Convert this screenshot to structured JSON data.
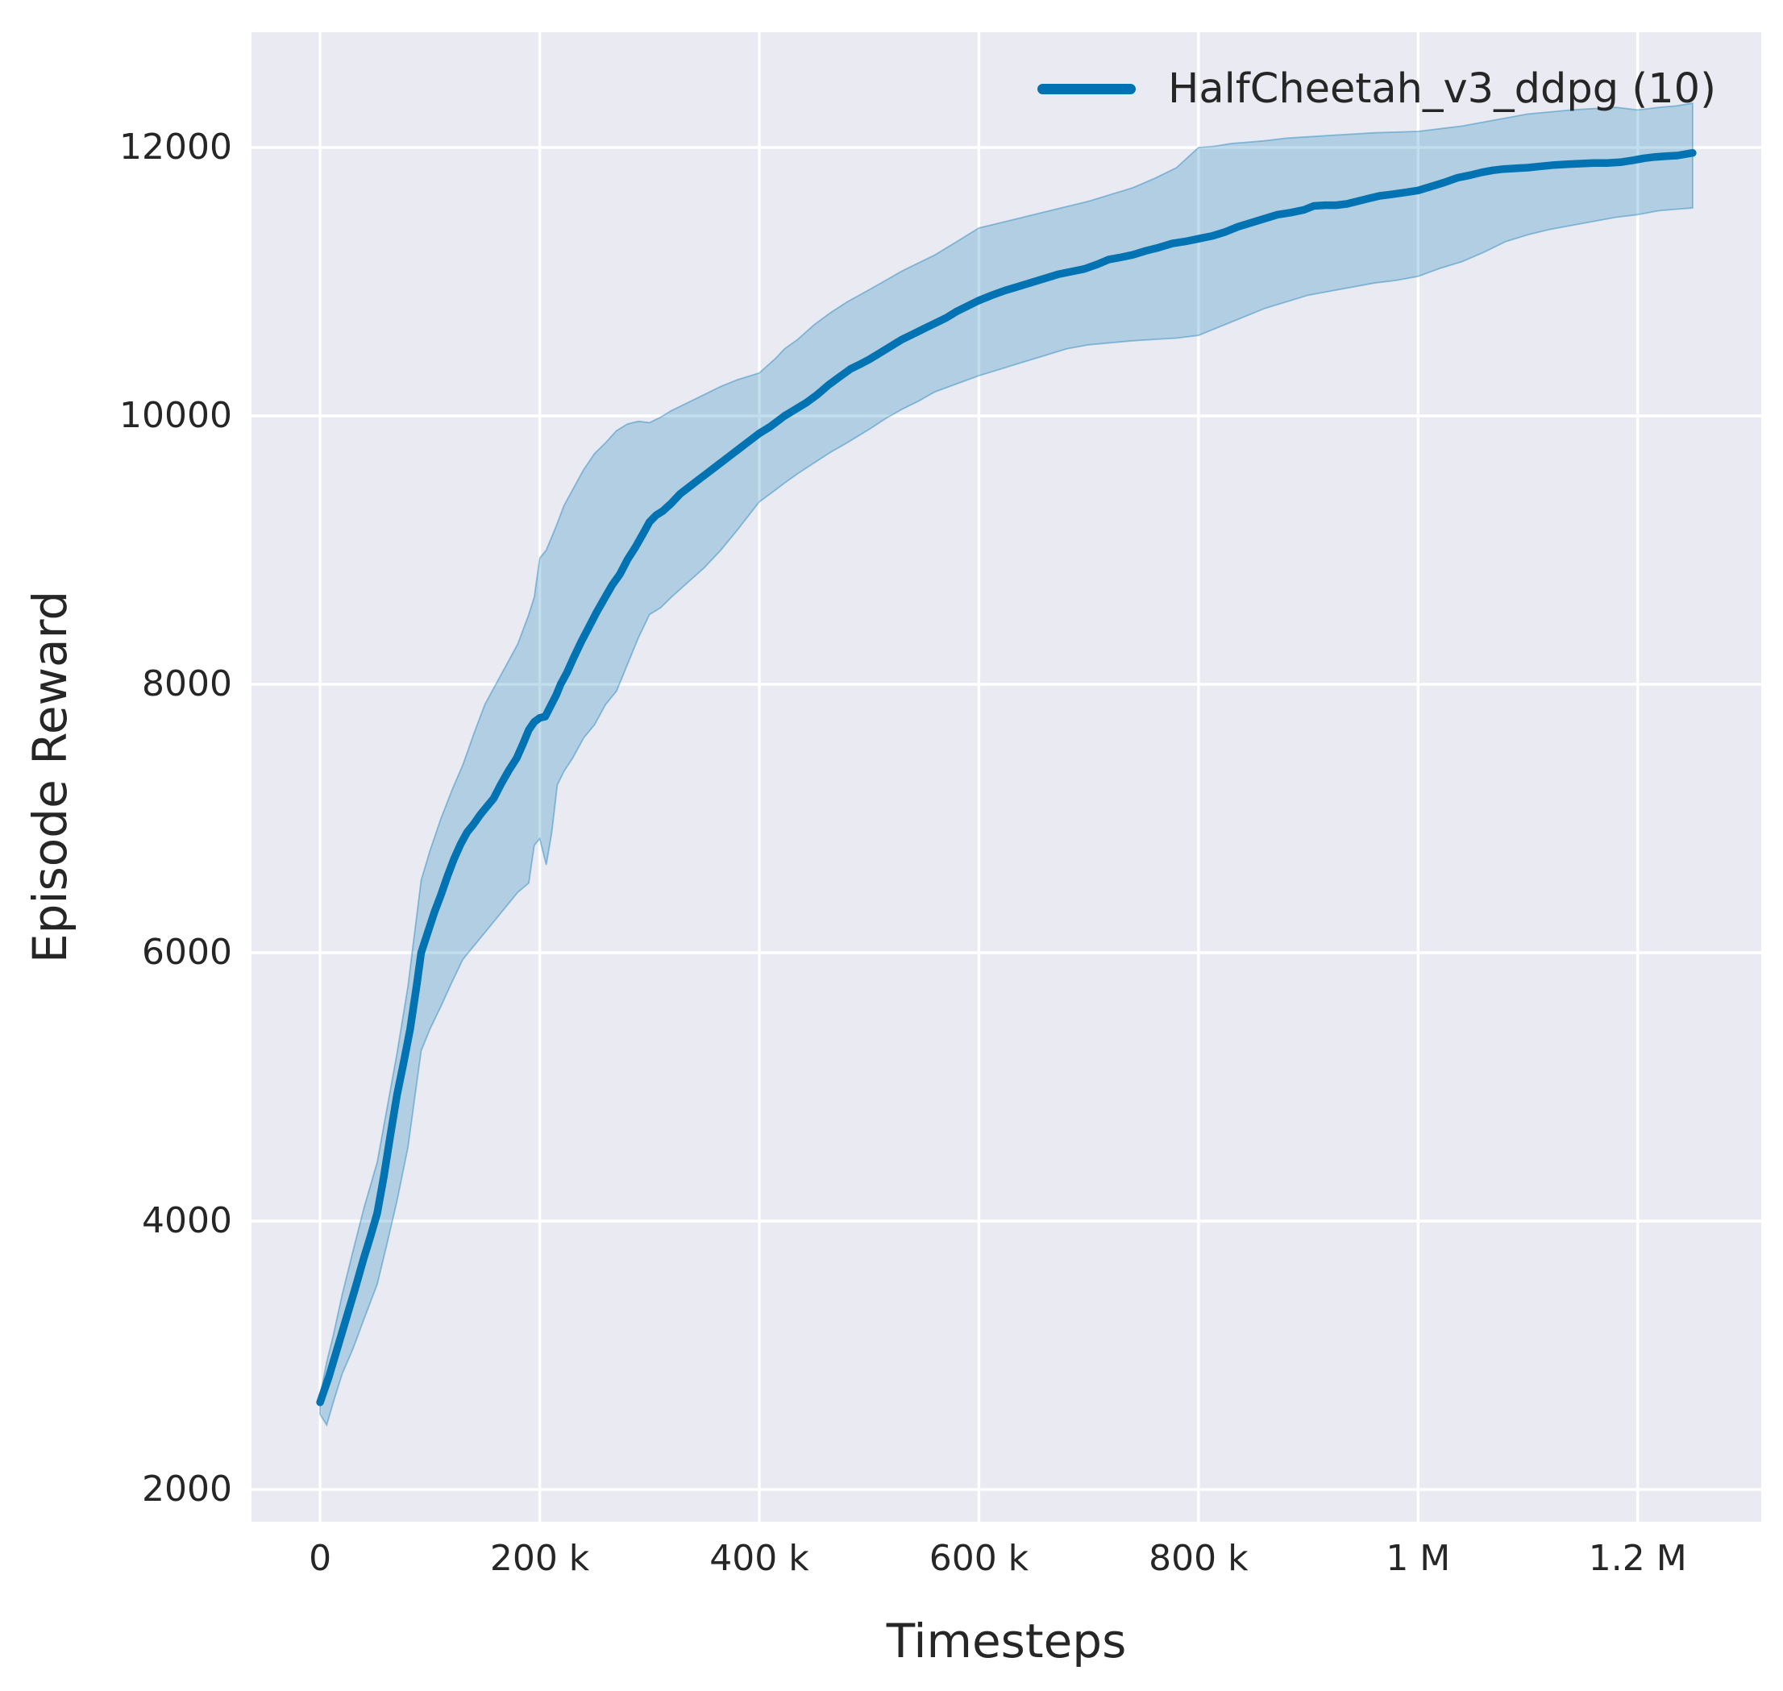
{
  "colors": {
    "figure_bg": "#ffffff",
    "plot_bg": "#eaeaf2",
    "grid": "#ffffff",
    "text": "#262626",
    "line": "#0173b2",
    "band": "rgba(1,115,178,0.24)",
    "band_edge": "rgba(1,115,178,0.38)"
  },
  "legend": {
    "label": "HalfCheetah_v3_ddpg (10)"
  },
  "axes": {
    "xlabel": "Timesteps",
    "ylabel": "Episode Reward",
    "x_ticks": [
      {
        "k": 0,
        "label": "0"
      },
      {
        "k": 200,
        "label": "200 k"
      },
      {
        "k": 400,
        "label": "400 k"
      },
      {
        "k": 600,
        "label": "600 k"
      },
      {
        "k": 800,
        "label": "800 k"
      },
      {
        "k": 1000,
        "label": "1 M"
      },
      {
        "k": 1200,
        "label": "1.2 M"
      }
    ],
    "y_ticks": [
      {
        "v": 2000,
        "label": "2000"
      },
      {
        "v": 4000,
        "label": "4000"
      },
      {
        "v": 6000,
        "label": "6000"
      },
      {
        "v": 8000,
        "label": "8000"
      },
      {
        "v": 10000,
        "label": "10000"
      },
      {
        "v": 12000,
        "label": "12000"
      }
    ]
  },
  "chart_data": {
    "type": "line",
    "title": "",
    "xlabel": "Timesteps",
    "ylabel": "Episode Reward",
    "x_unit_note": "x values in thousands of timesteps",
    "xlim_k": [
      -62.5,
      1312.5
    ],
    "ylim": [
      1760,
      12859
    ],
    "grid": true,
    "legend_position": "upper right",
    "legend": [
      {
        "name": "HalfCheetah_v3_ddpg (10)",
        "color": "#0173b2"
      }
    ],
    "series": [
      {
        "name": "HalfCheetah_v3_ddpg (10)",
        "mean": [
          [
            0,
            2650
          ],
          [
            8,
            2840
          ],
          [
            16,
            3060
          ],
          [
            24,
            3280
          ],
          [
            32,
            3500
          ],
          [
            40,
            3730
          ],
          [
            46,
            3890
          ],
          [
            52,
            4060
          ],
          [
            58,
            4330
          ],
          [
            64,
            4640
          ],
          [
            70,
            4940
          ],
          [
            76,
            5180
          ],
          [
            82,
            5430
          ],
          [
            88,
            5760
          ],
          [
            92,
            6000
          ],
          [
            98,
            6150
          ],
          [
            104,
            6300
          ],
          [
            110,
            6430
          ],
          [
            116,
            6570
          ],
          [
            122,
            6700
          ],
          [
            128,
            6810
          ],
          [
            134,
            6900
          ],
          [
            140,
            6960
          ],
          [
            146,
            7030
          ],
          [
            152,
            7090
          ],
          [
            158,
            7150
          ],
          [
            165,
            7260
          ],
          [
            172,
            7360
          ],
          [
            179,
            7450
          ],
          [
            185,
            7560
          ],
          [
            190,
            7660
          ],
          [
            195,
            7720
          ],
          [
            200,
            7750
          ],
          [
            205,
            7760
          ],
          [
            210,
            7840
          ],
          [
            215,
            7920
          ],
          [
            219,
            8000
          ],
          [
            225,
            8090
          ],
          [
            231,
            8200
          ],
          [
            238,
            8320
          ],
          [
            245,
            8430
          ],
          [
            252,
            8540
          ],
          [
            259,
            8640
          ],
          [
            266,
            8740
          ],
          [
            273,
            8820
          ],
          [
            280,
            8930
          ],
          [
            287,
            9020
          ],
          [
            294,
            9120
          ],
          [
            300,
            9210
          ],
          [
            306,
            9260
          ],
          [
            312,
            9290
          ],
          [
            320,
            9350
          ],
          [
            328,
            9420
          ],
          [
            336,
            9470
          ],
          [
            344,
            9520
          ],
          [
            352,
            9570
          ],
          [
            360,
            9620
          ],
          [
            368,
            9670
          ],
          [
            376,
            9720
          ],
          [
            384,
            9770
          ],
          [
            392,
            9820
          ],
          [
            400,
            9870
          ],
          [
            410,
            9920
          ],
          [
            423,
            10000
          ],
          [
            433,
            10050
          ],
          [
            443,
            10100
          ],
          [
            453,
            10160
          ],
          [
            463,
            10230
          ],
          [
            473,
            10290
          ],
          [
            483,
            10350
          ],
          [
            493,
            10390
          ],
          [
            500,
            10420
          ],
          [
            510,
            10470
          ],
          [
            520,
            10520
          ],
          [
            530,
            10570
          ],
          [
            540,
            10610
          ],
          [
            550,
            10650
          ],
          [
            560,
            10690
          ],
          [
            570,
            10730
          ],
          [
            580,
            10780
          ],
          [
            590,
            10820
          ],
          [
            600,
            10860
          ],
          [
            612,
            10900
          ],
          [
            624,
            10935
          ],
          [
            636,
            10965
          ],
          [
            648,
            10995
          ],
          [
            660,
            11025
          ],
          [
            672,
            11055
          ],
          [
            684,
            11075
          ],
          [
            696,
            11095
          ],
          [
            708,
            11130
          ],
          [
            718,
            11165
          ],
          [
            728,
            11180
          ],
          [
            740,
            11200
          ],
          [
            752,
            11230
          ],
          [
            764,
            11255
          ],
          [
            776,
            11285
          ],
          [
            788,
            11300
          ],
          [
            800,
            11320
          ],
          [
            812,
            11340
          ],
          [
            824,
            11370
          ],
          [
            836,
            11410
          ],
          [
            848,
            11440
          ],
          [
            860,
            11470
          ],
          [
            872,
            11500
          ],
          [
            884,
            11515
          ],
          [
            896,
            11535
          ],
          [
            905,
            11565
          ],
          [
            915,
            11570
          ],
          [
            925,
            11570
          ],
          [
            935,
            11580
          ],
          [
            945,
            11600
          ],
          [
            955,
            11620
          ],
          [
            965,
            11640
          ],
          [
            975,
            11650
          ],
          [
            988,
            11665
          ],
          [
            1000,
            11680
          ],
          [
            1012,
            11710
          ],
          [
            1024,
            11740
          ],
          [
            1036,
            11775
          ],
          [
            1048,
            11795
          ],
          [
            1058,
            11815
          ],
          [
            1068,
            11830
          ],
          [
            1078,
            11840
          ],
          [
            1090,
            11845
          ],
          [
            1100,
            11850
          ],
          [
            1112,
            11860
          ],
          [
            1124,
            11870
          ],
          [
            1136,
            11875
          ],
          [
            1148,
            11880
          ],
          [
            1160,
            11885
          ],
          [
            1172,
            11885
          ],
          [
            1184,
            11890
          ],
          [
            1196,
            11905
          ],
          [
            1206,
            11920
          ],
          [
            1216,
            11930
          ],
          [
            1226,
            11935
          ],
          [
            1236,
            11940
          ],
          [
            1250,
            11960
          ]
        ],
        "ci_band": [
          [
            0,
            2560,
            2700
          ],
          [
            6,
            2480,
            2950
          ],
          [
            12,
            2650,
            3150
          ],
          [
            20,
            2860,
            3450
          ],
          [
            30,
            3050,
            3780
          ],
          [
            40,
            3270,
            4100
          ],
          [
            52,
            3530,
            4440
          ],
          [
            60,
            3800,
            4800
          ],
          [
            70,
            4150,
            5250
          ],
          [
            80,
            4550,
            5750
          ],
          [
            92,
            5270,
            6540
          ],
          [
            100,
            5430,
            6760
          ],
          [
            110,
            5600,
            7000
          ],
          [
            120,
            5780,
            7210
          ],
          [
            130,
            5950,
            7400
          ],
          [
            140,
            6050,
            7630
          ],
          [
            150,
            6150,
            7850
          ],
          [
            160,
            6250,
            8000
          ],
          [
            170,
            6350,
            8150
          ],
          [
            180,
            6450,
            8300
          ],
          [
            190,
            6520,
            8520
          ],
          [
            195,
            6800,
            8650
          ],
          [
            200,
            6850,
            8940
          ],
          [
            206,
            6655,
            9000
          ],
          [
            211,
            6900,
            9100
          ],
          [
            216,
            7250,
            9200
          ],
          [
            222,
            7350,
            9330
          ],
          [
            230,
            7450,
            9450
          ],
          [
            240,
            7600,
            9600
          ],
          [
            250,
            7700,
            9720
          ],
          [
            260,
            7850,
            9800
          ],
          [
            270,
            7950,
            9890
          ],
          [
            280,
            8150,
            9940
          ],
          [
            290,
            8350,
            9960
          ],
          [
            300,
            8520,
            9950
          ],
          [
            310,
            8570,
            9990
          ],
          [
            320,
            8650,
            10040
          ],
          [
            335,
            8760,
            10100
          ],
          [
            350,
            8870,
            10160
          ],
          [
            365,
            9000,
            10220
          ],
          [
            380,
            9150,
            10270
          ],
          [
            400,
            9360,
            10320
          ],
          [
            415,
            9450,
            10430
          ],
          [
            423,
            9500,
            10500
          ],
          [
            435,
            9570,
            10570
          ],
          [
            450,
            9650,
            10680
          ],
          [
            465,
            9730,
            10770
          ],
          [
            480,
            9800,
            10850
          ],
          [
            500,
            9900,
            10940
          ],
          [
            515,
            9980,
            11010
          ],
          [
            530,
            10050,
            11080
          ],
          [
            545,
            10110,
            11140
          ],
          [
            560,
            10180,
            11200
          ],
          [
            580,
            10240,
            11300
          ],
          [
            600,
            10300,
            11400
          ],
          [
            620,
            10350,
            11440
          ],
          [
            640,
            10400,
            11480
          ],
          [
            660,
            10450,
            11520
          ],
          [
            680,
            10500,
            11560
          ],
          [
            700,
            10530,
            11600
          ],
          [
            720,
            10545,
            11650
          ],
          [
            740,
            10560,
            11700
          ],
          [
            760,
            10570,
            11770
          ],
          [
            780,
            10580,
            11850
          ],
          [
            800,
            10600,
            12000
          ],
          [
            815,
            10650,
            12010
          ],
          [
            830,
            10700,
            12030
          ],
          [
            845,
            10750,
            12040
          ],
          [
            860,
            10800,
            12050
          ],
          [
            880,
            10850,
            12070
          ],
          [
            900,
            10900,
            12080
          ],
          [
            920,
            10930,
            12090
          ],
          [
            940,
            10960,
            12100
          ],
          [
            960,
            10990,
            12110
          ],
          [
            980,
            11010,
            12115
          ],
          [
            1000,
            11040,
            12120
          ],
          [
            1020,
            11100,
            12140
          ],
          [
            1040,
            11150,
            12160
          ],
          [
            1060,
            11220,
            12190
          ],
          [
            1080,
            11300,
            12220
          ],
          [
            1100,
            11350,
            12250
          ],
          [
            1120,
            11390,
            12265
          ],
          [
            1140,
            11420,
            12280
          ],
          [
            1160,
            11450,
            12290
          ],
          [
            1180,
            11480,
            12300
          ],
          [
            1200,
            11500,
            12280
          ],
          [
            1220,
            11530,
            12300
          ],
          [
            1235,
            11540,
            12310
          ],
          [
            1250,
            11550,
            12330
          ]
        ]
      }
    ]
  }
}
